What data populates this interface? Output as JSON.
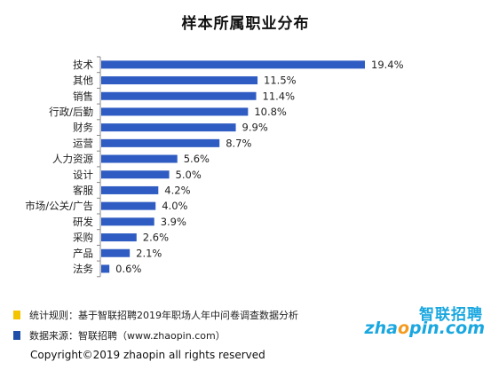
{
  "chart_data": {
    "type": "bar",
    "orientation": "horizontal",
    "title": "样本所属职业分布",
    "categories": [
      "技术",
      "其他",
      "销售",
      "行政/后勤",
      "财务",
      "运营",
      "人力资源",
      "设计",
      "客服",
      "市场/公关/广告",
      "研发",
      "采购",
      "产品",
      "法务"
    ],
    "values": [
      19.4,
      11.5,
      11.4,
      10.8,
      9.9,
      8.7,
      5.6,
      5.0,
      4.2,
      4.0,
      3.9,
      2.6,
      2.1,
      0.6
    ],
    "value_labels": [
      "19.4%",
      "11.5%",
      "11.4%",
      "10.8%",
      "9.9%",
      "8.7%",
      "5.6%",
      "5.0%",
      "4.2%",
      "4.0%",
      "3.9%",
      "2.6%",
      "2.1%",
      "0.6%"
    ],
    "xlim": [
      0,
      19.4
    ],
    "bar_color": "#2f5cc2",
    "grid": false,
    "legend": "none"
  },
  "footer": {
    "rule_text": "统计规则：基于智联招聘2019年职场人年中问卷调查数据分析",
    "rule_marker_color": "#f5c400",
    "source_text": "数据来源：智联招聘（www.zhaopin.com）",
    "source_marker_color": "#1f4fa8",
    "copyright": "Copyright©2019 zhaopin all rights reserved"
  },
  "logo": {
    "cn": "智联招聘",
    "en_prefix": "zha",
    "en_o": "o",
    "en_suffix": "pin.com"
  }
}
